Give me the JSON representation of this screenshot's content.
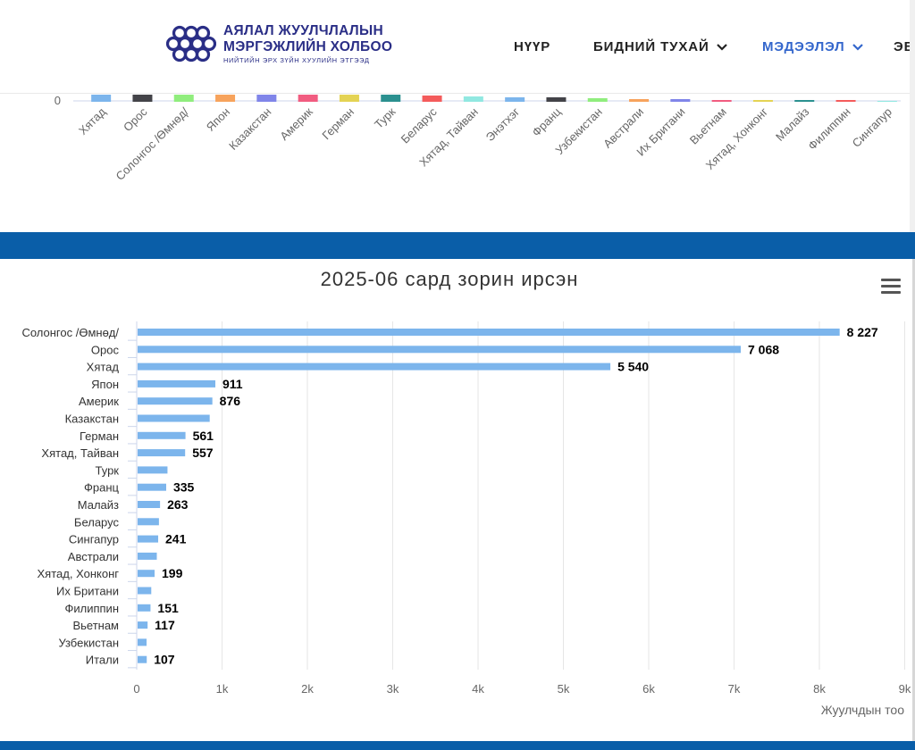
{
  "header": {
    "logo": {
      "line1": "АЯЛАЛ ЖУУЛЧЛАЛЫН",
      "line2": "МЭРГЭЖЛИЙН ХОЛБОО",
      "line3": "НИЙТИЙН ЭРХ ЗҮЙН ХУУЛИЙН ЭТГЭЭД"
    },
    "nav": [
      {
        "label": "НҮҮР",
        "has_dropdown": false,
        "active": false
      },
      {
        "label": "БИДНИЙ ТУХАЙ",
        "has_dropdown": true,
        "active": false
      },
      {
        "label": "МЭДЭЭЛЭЛ",
        "has_dropdown": true,
        "active": true
      },
      {
        "label": "ЭВ",
        "has_dropdown": false,
        "active": false
      }
    ],
    "colors": {
      "logo": "#2a2e86",
      "nav_active": "#3366cc",
      "band": "#0a5ea8"
    }
  },
  "chart_data": [
    {
      "type": "bar",
      "orientation": "vertical",
      "partial_view": true,
      "y_tick_visible": "0",
      "categories": [
        "Хятад",
        "Орос",
        "Солонгос /Өмнөд/",
        "Япон",
        "Казакстан",
        "Америк",
        "Герман",
        "Турк",
        "Беларус",
        "Хятад, Тайван",
        "Энэтхэг",
        "Франц",
        "Узбекистан",
        "Австрали",
        "Их Британи",
        "Вьетнам",
        "Хятад, Хонконг",
        "Малайз",
        "Филиппин",
        "Сингапур"
      ],
      "colors": [
        "#7cb5ec",
        "#434348",
        "#90ed7d",
        "#f7a35c",
        "#8085e9",
        "#f15c80",
        "#e4d354",
        "#2b908f",
        "#f45b5b",
        "#91e8e1",
        "#7cb5ec",
        "#434348",
        "#90ed7d",
        "#f7a35c",
        "#8085e9",
        "#f15c80",
        "#e4d354",
        "#2b908f",
        "#f45b5b",
        "#91e8e1"
      ]
    },
    {
      "type": "bar",
      "orientation": "horizontal",
      "title": "2025-06 сард зорин ирсэн",
      "ylabel": "Жуулчдын тоо",
      "xlim": [
        0,
        9000
      ],
      "x_ticks": [
        "0",
        "1k",
        "2k",
        "3k",
        "4k",
        "5k",
        "6k",
        "7k",
        "8k",
        "9k"
      ],
      "grid": true,
      "bar_color": "#7cb5ec",
      "categories": [
        "Солонгос /Өмнөд/",
        "Орос",
        "Хятад",
        "Япон",
        "Америк",
        "Казакстан",
        "Герман",
        "Хятад, Тайван",
        "Турк",
        "Франц",
        "Малайз",
        "Беларус",
        "Сингапур",
        "Австрали",
        "Хятад, Хонконг",
        "Их Британи",
        "Филиппин",
        "Вьетнам",
        "Узбекистан",
        "Итали"
      ],
      "values": [
        8227,
        7068,
        5540,
        911,
        876,
        845,
        561,
        557,
        350,
        335,
        263,
        250,
        241,
        225,
        199,
        160,
        151,
        117,
        105,
        107
      ],
      "data_labels": [
        "8 227",
        "7 068",
        "5 540",
        "911",
        "876",
        "",
        "561",
        "557",
        "",
        "335",
        "263",
        "",
        "241",
        "",
        "199",
        "",
        "151",
        "117",
        "",
        "107"
      ]
    }
  ]
}
